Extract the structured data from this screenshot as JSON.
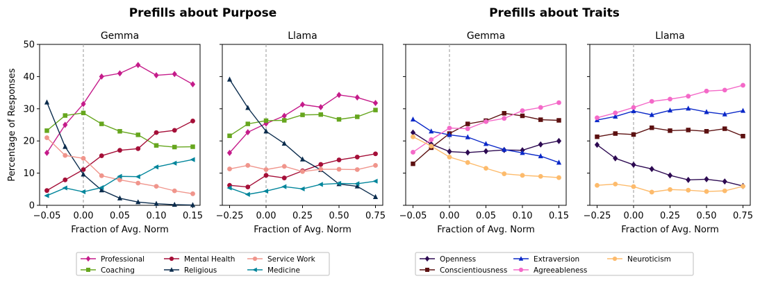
{
  "figure": {
    "group_titles": [
      "Prefills about Purpose",
      "Prefills about Traits"
    ],
    "ylabel": "Percentage of Responses"
  },
  "legends": [
    {
      "entries": [
        {
          "label": "Professional",
          "color": "#c51b8a",
          "marker": "diamond"
        },
        {
          "label": "Coaching",
          "color": "#66a61e",
          "marker": "square"
        },
        {
          "label": "Mental Health",
          "color": "#a50f38",
          "marker": "circle"
        },
        {
          "label": "Religious",
          "color": "#0b2c4d",
          "marker": "triangle-up"
        },
        {
          "label": "Service Work",
          "color": "#f0958c",
          "marker": "circle"
        },
        {
          "label": "Medicine",
          "color": "#00859b",
          "marker": "triangle-left"
        }
      ]
    },
    {
      "entries": [
        {
          "label": "Openness",
          "color": "#2d0a52",
          "marker": "diamond"
        },
        {
          "label": "Conscientiousness",
          "color": "#5c1010",
          "marker": "square"
        },
        {
          "label": "Extraversion",
          "color": "#0a28c8",
          "marker": "triangle-up"
        },
        {
          "label": "Agreeableness",
          "color": "#f469c8",
          "marker": "circle"
        },
        {
          "label": "Neuroticism",
          "color": "#fdbb6c",
          "marker": "circle"
        }
      ]
    }
  ],
  "chart_data": [
    {
      "type": "line",
      "title": "Gemma",
      "group": "Prefills about Purpose",
      "xlabel": "Fraction of Avg. Norm",
      "ylabel": "Percentage of Responses",
      "xlim": [
        -0.06,
        0.16
      ],
      "ylim": [
        0,
        50
      ],
      "xticks": [
        -0.05,
        0.0,
        0.05,
        0.1,
        0.15
      ],
      "xtick_labels": [
        "−0.05",
        "0.00",
        "0.05",
        "0.10",
        "0.15"
      ],
      "yticks": [
        0,
        10,
        20,
        30,
        40,
        50
      ],
      "ytick_labels": [
        "0",
        "10",
        "20",
        "30",
        "40",
        "50"
      ],
      "show_yticklabels": true,
      "vline": 0,
      "x": [
        -0.05,
        -0.025,
        0.0,
        0.025,
        0.05,
        0.075,
        0.1,
        0.125,
        0.15
      ],
      "series": [
        {
          "name": "Professional",
          "values": [
            16.3,
            25.0,
            31.5,
            40.0,
            41.0,
            43.6,
            40.4,
            40.8,
            37.6
          ]
        },
        {
          "name": "Coaching",
          "values": [
            23.2,
            27.9,
            28.7,
            25.3,
            23.0,
            21.9,
            18.6,
            18.1,
            18.2
          ]
        },
        {
          "name": "Mental Health",
          "values": [
            4.6,
            7.9,
            11.1,
            15.4,
            17.1,
            17.6,
            22.6,
            23.3,
            26.2
          ]
        },
        {
          "name": "Religious",
          "values": [
            32.0,
            18.2,
            9.6,
            4.7,
            2.2,
            1.0,
            0.5,
            0.2,
            0.1
          ]
        },
        {
          "name": "Service Work",
          "values": [
            21.0,
            15.5,
            14.6,
            9.2,
            7.9,
            6.9,
            5.9,
            4.5,
            3.6
          ]
        },
        {
          "name": "Medicine",
          "values": [
            3.0,
            5.4,
            4.2,
            5.5,
            9.0,
            8.9,
            11.9,
            13.1,
            14.2
          ]
        }
      ]
    },
    {
      "type": "line",
      "title": "Llama",
      "group": "Prefills about Purpose",
      "xlabel": "Fraction of Avg. Norm",
      "ylabel": "",
      "xlim": [
        -0.3,
        0.8
      ],
      "ylim": [
        0,
        50
      ],
      "xticks": [
        -0.25,
        0.0,
        0.25,
        0.5,
        0.75
      ],
      "xtick_labels": [
        "−0.25",
        "0.00",
        "0.25",
        "0.50",
        "0.75"
      ],
      "yticks": [
        0,
        10,
        20,
        30,
        40,
        50
      ],
      "ytick_labels": [
        "",
        "",
        "",
        "",
        "",
        ""
      ],
      "show_yticklabels": false,
      "vline": 0,
      "x": [
        -0.25,
        -0.125,
        0.0,
        0.125,
        0.25,
        0.375,
        0.5,
        0.625,
        0.75
      ],
      "series": [
        {
          "name": "Professional",
          "values": [
            16.3,
            22.7,
            25.4,
            27.8,
            31.3,
            30.5,
            34.3,
            33.5,
            31.8
          ]
        },
        {
          "name": "Coaching",
          "values": [
            21.6,
            25.3,
            26.3,
            26.4,
            28.1,
            28.2,
            26.7,
            27.5,
            29.6
          ]
        },
        {
          "name": "Mental Health",
          "values": [
            6.2,
            5.7,
            9.3,
            8.5,
            10.7,
            12.7,
            14.1,
            15.0,
            16.0
          ]
        },
        {
          "name": "Religious",
          "values": [
            39.1,
            30.3,
            23.0,
            19.2,
            14.3,
            11.0,
            6.6,
            5.9,
            2.6
          ]
        },
        {
          "name": "Service Work",
          "values": [
            11.3,
            12.4,
            11.1,
            12.1,
            10.5,
            11.2,
            11.2,
            11.1,
            12.4
          ]
        },
        {
          "name": "Medicine",
          "values": [
            5.4,
            3.4,
            4.4,
            5.8,
            5.1,
            6.5,
            6.8,
            6.7,
            7.5
          ]
        }
      ]
    },
    {
      "type": "line",
      "title": "Gemma",
      "group": "Prefills about Traits",
      "xlabel": "Fraction of Avg. Norm",
      "ylabel": "",
      "xlim": [
        -0.06,
        0.16
      ],
      "ylim": [
        0,
        50
      ],
      "xticks": [
        -0.05,
        0.0,
        0.05,
        0.1,
        0.15
      ],
      "xtick_labels": [
        "−0.05",
        "0.00",
        "0.05",
        "0.10",
        "0.15"
      ],
      "yticks": [
        0,
        10,
        20,
        30,
        40,
        50
      ],
      "ytick_labels": [
        "",
        "",
        "",
        "",
        "",
        ""
      ],
      "show_yticklabels": false,
      "vline": 0,
      "x": [
        -0.05,
        -0.025,
        0.0,
        0.025,
        0.05,
        0.075,
        0.1,
        0.125,
        0.15
      ],
      "series": [
        {
          "name": "Openness",
          "values": [
            22.6,
            19.0,
            16.7,
            16.4,
            16.8,
            17.2,
            17.1,
            18.9,
            20.0
          ]
        },
        {
          "name": "Conscientiousness",
          "values": [
            12.9,
            17.9,
            22.3,
            25.3,
            26.3,
            28.6,
            27.8,
            26.6,
            26.4
          ]
        },
        {
          "name": "Extraversion",
          "values": [
            26.7,
            23.0,
            21.9,
            21.2,
            19.1,
            17.3,
            16.3,
            15.3,
            13.3
          ]
        },
        {
          "name": "Agreeableness",
          "values": [
            16.5,
            20.4,
            24.0,
            23.8,
            26.0,
            27.0,
            29.4,
            30.4,
            31.9
          ]
        },
        {
          "name": "Neuroticism",
          "values": [
            21.3,
            18.4,
            15.0,
            13.3,
            11.5,
            9.8,
            9.3,
            9.0,
            8.6
          ]
        }
      ]
    },
    {
      "type": "line",
      "title": "Llama",
      "group": "Prefills about Traits",
      "xlabel": "Fraction of Avg. Norm",
      "ylabel": "",
      "xlim": [
        -0.3,
        0.8
      ],
      "ylim": [
        0,
        50
      ],
      "xticks": [
        -0.25,
        0.0,
        0.25,
        0.5,
        0.75
      ],
      "xtick_labels": [
        "−0.25",
        "0.00",
        "0.25",
        "0.50",
        "0.75"
      ],
      "yticks": [
        0,
        10,
        20,
        30,
        40,
        50
      ],
      "ytick_labels": [
        "",
        "",
        "",
        "",
        "",
        ""
      ],
      "show_yticklabels": false,
      "vline": 0,
      "x": [
        -0.25,
        -0.125,
        0.0,
        0.125,
        0.25,
        0.375,
        0.5,
        0.625,
        0.75
      ],
      "series": [
        {
          "name": "Openness",
          "values": [
            18.8,
            14.6,
            12.6,
            11.3,
            9.3,
            7.9,
            8.1,
            7.4,
            6.0
          ]
        },
        {
          "name": "Conscientiousness",
          "values": [
            21.3,
            22.3,
            22.0,
            24.1,
            23.2,
            23.4,
            23.0,
            23.8,
            21.5
          ]
        },
        {
          "name": "Extraversion",
          "values": [
            26.5,
            27.6,
            29.3,
            28.1,
            29.5,
            30.1,
            29.0,
            28.3,
            29.4
          ]
        },
        {
          "name": "Agreeableness",
          "values": [
            27.2,
            28.7,
            30.4,
            32.3,
            33.0,
            33.9,
            35.5,
            35.8,
            37.3
          ]
        },
        {
          "name": "Neuroticism",
          "values": [
            6.2,
            6.6,
            5.8,
            4.1,
            4.9,
            4.7,
            4.3,
            4.5,
            5.9
          ]
        }
      ]
    }
  ]
}
